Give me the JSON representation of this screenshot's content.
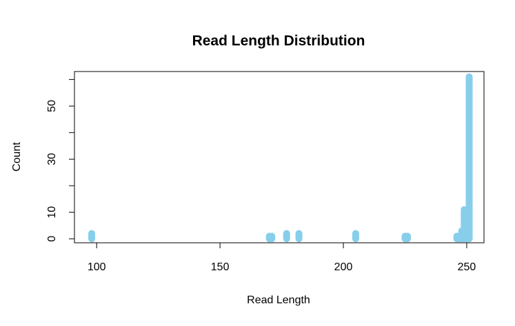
{
  "chart_data": {
    "type": "bar",
    "title": "Read Length Distribution",
    "xlabel": "Read Length",
    "ylabel": "Count",
    "xlim": [
      91,
      257
    ],
    "ylim": [
      -1.5,
      63
    ],
    "x_ticks": [
      100,
      150,
      200,
      250
    ],
    "y_ticks": [
      0,
      10,
      30,
      50
    ],
    "y_minor_ticks": [
      0,
      10,
      20,
      30,
      40,
      50,
      60
    ],
    "grid": false,
    "bar_color": "#87CEEB",
    "x": [
      98,
      170,
      171,
      177,
      182,
      205,
      225,
      226,
      246,
      247,
      248,
      249,
      250,
      251
    ],
    "values": [
      2,
      1,
      1,
      2,
      2,
      2,
      1,
      1,
      1,
      1,
      3,
      11,
      8,
      61
    ]
  }
}
